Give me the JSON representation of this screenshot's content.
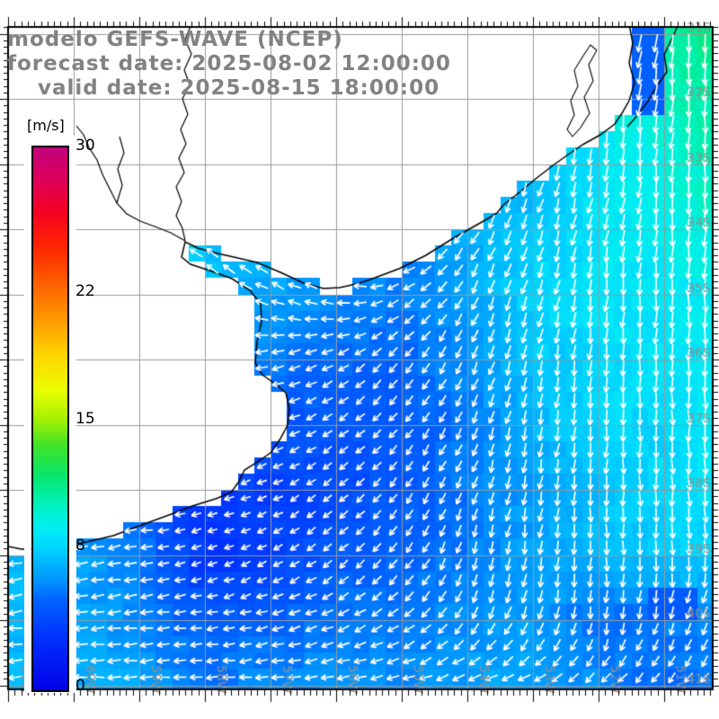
{
  "title": {
    "model_line": "modelo GEFS-WAVE (NCEP)",
    "forecast_line": "forecast date: 2025-08-02 12:00:00",
    "valid_line": "valid date: 2025-08-15 18:00:00",
    "color": "#828282"
  },
  "colorbar": {
    "unit": "[m/s]",
    "min": 0,
    "max": 30,
    "tick_labels": [
      "30",
      "22",
      "15",
      "8",
      "0"
    ],
    "stops": [
      [
        0,
        "#0000e6"
      ],
      [
        3,
        "#0032ff"
      ],
      [
        5,
        "#0064ff"
      ],
      [
        6,
        "#0091ff"
      ],
      [
        7,
        "#00b4ff"
      ],
      [
        8,
        "#00d9ff"
      ],
      [
        9,
        "#00eef0"
      ],
      [
        10,
        "#00f2c8"
      ],
      [
        11,
        "#00ed96"
      ],
      [
        12,
        "#0ce567"
      ],
      [
        13.5,
        "#3fe329"
      ],
      [
        15,
        "#a5f000"
      ],
      [
        16.5,
        "#e8ff00"
      ],
      [
        18.5,
        "#ffd500"
      ],
      [
        20.5,
        "#ff9800"
      ],
      [
        22.5,
        "#ff5f00"
      ],
      [
        24.5,
        "#ff2500"
      ],
      [
        26.5,
        "#f40023"
      ],
      [
        28,
        "#e00055"
      ],
      [
        30,
        "#c2007e"
      ]
    ]
  },
  "axes": {
    "lon_labels": [
      "61W",
      "60W",
      "59W",
      "58W",
      "57W",
      "56W",
      "55W",
      "54W",
      "53W",
      "52W",
      "51W"
    ],
    "lat_labels": [
      "31S",
      "32S",
      "33S",
      "34S",
      "35S",
      "36S",
      "37S",
      "38S",
      "39S",
      "40S",
      "41S"
    ],
    "grid_color": "#9a9a9a",
    "label_color": "#8f8f8f",
    "frame_color": "#000000"
  },
  "chart_data": {
    "type": "heatmap",
    "title": "modelo GEFS-WAVE (NCEP)",
    "units": "m/s",
    "legend_position": "left",
    "grid": "on",
    "lon_deg_west": [
      61,
      60,
      59,
      58,
      57,
      56,
      55,
      54,
      53,
      52,
      51,
      50
    ],
    "lat_deg_south": [
      31,
      32,
      33,
      34,
      35,
      36,
      37,
      38,
      39,
      40,
      41
    ],
    "speed_grid": [
      [
        7,
        7,
        7,
        7,
        7,
        7,
        6.5,
        6.5,
        6.5,
        9,
        11,
        11.5
      ],
      [
        7,
        7,
        7,
        7,
        7,
        6.5,
        6,
        6,
        7,
        9,
        10,
        11
      ],
      [
        7,
        7,
        7,
        7,
        6.5,
        6.5,
        6,
        6.5,
        7,
        8.5,
        9.5,
        10.5
      ],
      [
        7,
        7,
        7,
        7.5,
        7,
        6.5,
        6,
        7,
        7.5,
        8.5,
        9,
        10
      ],
      [
        7,
        7,
        7,
        7.5,
        6.5,
        6,
        5.5,
        6.5,
        8,
        8.5,
        8.5,
        9.5
      ],
      [
        6.5,
        6.5,
        6.5,
        6,
        5.5,
        5,
        5,
        6,
        7.5,
        8,
        8.5,
        9
      ],
      [
        6,
        6,
        5.5,
        5,
        4.5,
        4.5,
        4.5,
        5.5,
        7,
        8,
        8,
        9
      ],
      [
        5.5,
        5,
        4.5,
        3.5,
        3.5,
        4,
        4.5,
        5.5,
        6.5,
        7.5,
        8,
        8.5
      ],
      [
        7,
        6.5,
        5.5,
        3,
        3.5,
        4.5,
        5,
        5.5,
        6.5,
        7,
        7.5,
        8
      ],
      [
        7,
        6.5,
        6,
        4.5,
        5,
        5.5,
        5.5,
        6,
        6.5,
        5,
        5.5,
        6
      ],
      [
        7,
        7,
        6.5,
        5.5,
        6,
        6,
        6,
        6.5,
        6.5,
        6,
        5,
        5.5
      ]
    ],
    "dir_to_deg": [
      [
        270,
        270,
        270,
        270,
        270,
        270,
        270,
        250,
        210,
        192,
        186,
        182
      ],
      [
        270,
        270,
        270,
        270,
        270,
        270,
        260,
        215,
        200,
        192,
        186,
        182
      ],
      [
        280,
        280,
        285,
        290,
        295,
        280,
        240,
        210,
        198,
        190,
        184,
        181
      ],
      [
        285,
        290,
        295,
        300,
        298,
        285,
        245,
        212,
        198,
        190,
        184,
        181
      ],
      [
        280,
        290,
        305,
        308,
        295,
        285,
        240,
        208,
        196,
        188,
        183,
        180
      ],
      [
        275,
        278,
        282,
        272,
        258,
        240,
        220,
        204,
        192,
        185,
        181,
        179
      ],
      [
        270,
        272,
        270,
        262,
        250,
        236,
        220,
        204,
        192,
        183,
        180,
        178
      ],
      [
        265,
        268,
        265,
        257,
        245,
        231,
        217,
        200,
        190,
        182,
        178,
        177
      ],
      [
        258,
        260,
        258,
        252,
        242,
        230,
        215,
        198,
        188,
        181,
        177,
        176
      ],
      [
        262,
        264,
        263,
        260,
        254,
        246,
        232,
        212,
        195,
        183,
        195,
        205
      ],
      [
        268,
        268,
        268,
        266,
        264,
        262,
        258,
        252,
        245,
        232,
        220,
        215
      ]
    ],
    "patches": [
      {
        "lon_w": [
          51.6,
          51.05
        ],
        "lat_s": [
          30.9,
          32.35
        ],
        "speed": 4.8
      },
      {
        "lon_w": [
          51.3,
          50.4
        ],
        "lat_s": [
          39.45,
          40.1
        ],
        "speed": 4.6
      }
    ],
    "coastline": [
      [
        700,
        27
      ],
      [
        704,
        48
      ],
      [
        700,
        70
      ],
      [
        706,
        92
      ],
      [
        700,
        112
      ],
      [
        692,
        126
      ],
      [
        684,
        138
      ],
      [
        668,
        150
      ],
      [
        650,
        160
      ],
      [
        632,
        172
      ],
      [
        614,
        185
      ],
      [
        596,
        199
      ],
      [
        578,
        214
      ],
      [
        560,
        228
      ],
      [
        553,
        237
      ],
      [
        538,
        246
      ],
      [
        522,
        255
      ],
      [
        506,
        264
      ],
      [
        490,
        274
      ],
      [
        474,
        284
      ],
      [
        458,
        292
      ],
      [
        444,
        299
      ],
      [
        428,
        305
      ],
      [
        412,
        311
      ],
      [
        396,
        316
      ],
      [
        378,
        320
      ],
      [
        360,
        321
      ],
      [
        338,
        315
      ],
      [
        312,
        303
      ],
      [
        286,
        292
      ],
      [
        260,
        286
      ],
      [
        238,
        281
      ],
      [
        220,
        276
      ],
      [
        206,
        269
      ],
      [
        202,
        286
      ],
      [
        212,
        294
      ],
      [
        236,
        302
      ],
      [
        258,
        310
      ],
      [
        278,
        323
      ],
      [
        290,
        338
      ],
      [
        291,
        358
      ],
      [
        286,
        380
      ],
      [
        284,
        404
      ],
      [
        292,
        417
      ],
      [
        306,
        427
      ],
      [
        318,
        437
      ],
      [
        322,
        455
      ],
      [
        320,
        473
      ],
      [
        312,
        488
      ],
      [
        302,
        503
      ],
      [
        288,
        513
      ],
      [
        272,
        523
      ],
      [
        265,
        537
      ],
      [
        257,
        548
      ],
      [
        240,
        555
      ],
      [
        214,
        563
      ],
      [
        188,
        573
      ],
      [
        158,
        584
      ],
      [
        126,
        596
      ],
      [
        92,
        604
      ],
      [
        56,
        610
      ],
      [
        24,
        611
      ],
      [
        9,
        608
      ]
    ],
    "barrier_spit": [
      [
        755,
        27
      ],
      [
        747,
        44
      ],
      [
        739,
        61
      ],
      [
        742,
        80
      ],
      [
        730,
        97
      ],
      [
        720,
        114
      ],
      [
        707,
        131
      ],
      [
        698,
        141
      ]
    ],
    "lagoon_outline": [
      [
        664,
        56
      ],
      [
        655,
        72
      ],
      [
        660,
        90
      ],
      [
        650,
        108
      ],
      [
        656,
        126
      ],
      [
        646,
        142
      ],
      [
        637,
        152
      ],
      [
        631,
        144
      ],
      [
        639,
        128
      ],
      [
        635,
        112
      ],
      [
        643,
        96
      ],
      [
        639,
        78
      ],
      [
        649,
        62
      ],
      [
        657,
        50
      ],
      [
        664,
        56
      ]
    ],
    "rivers": [
      [
        [
          213,
          27
        ],
        [
          206,
          44
        ],
        [
          213,
          60
        ],
        [
          205,
          78
        ],
        [
          211,
          94
        ],
        [
          203,
          110
        ],
        [
          209,
          127
        ],
        [
          201,
          144
        ],
        [
          207,
          160
        ],
        [
          199,
          176
        ],
        [
          205,
          192
        ],
        [
          196,
          208
        ],
        [
          202,
          224
        ],
        [
          196,
          240
        ],
        [
          203,
          254
        ],
        [
          206,
          268
        ]
      ],
      [
        [
          206,
          268
        ],
        [
          190,
          259
        ],
        [
          172,
          252
        ],
        [
          156,
          246
        ],
        [
          141,
          238
        ],
        [
          130,
          226
        ],
        [
          122,
          210
        ],
        [
          114,
          194
        ],
        [
          108,
          178
        ],
        [
          99,
          164
        ],
        [
          93,
          150
        ],
        [
          85,
          140
        ]
      ],
      [
        [
          130,
          226
        ],
        [
          136,
          206
        ],
        [
          131,
          188
        ],
        [
          138,
          170
        ],
        [
          133,
          152
        ]
      ]
    ]
  }
}
